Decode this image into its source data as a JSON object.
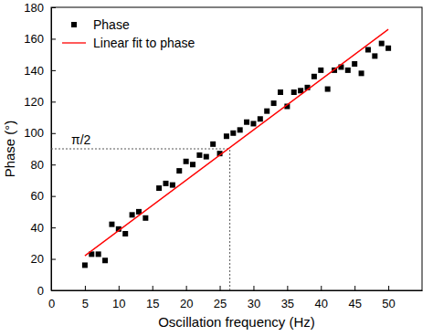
{
  "chart_data": {
    "type": "scatter",
    "x_label": "Oscillation frequency (Hz)",
    "y_label": "Phase (°)",
    "xlim": [
      0,
      55
    ],
    "xticks": [
      0,
      5,
      10,
      15,
      20,
      25,
      30,
      35,
      40,
      45,
      50
    ],
    "ylim": [
      0,
      180
    ],
    "yticks": [
      0,
      20,
      40,
      60,
      80,
      100,
      120,
      140,
      160,
      180
    ],
    "legend": "upper left",
    "grid": false,
    "series": [
      {
        "name": "Phase",
        "type": "scatter",
        "marker": "square",
        "color": "#000000",
        "x": [
          5,
          6,
          7,
          8,
          9,
          10,
          11,
          12,
          13,
          14,
          16,
          17,
          18,
          19,
          20,
          21,
          22,
          23,
          24,
          25,
          26,
          27,
          28,
          29,
          30,
          31,
          32,
          33,
          34,
          35,
          36,
          37,
          38,
          39,
          40,
          41,
          42,
          43,
          44,
          45,
          46,
          47,
          48,
          49,
          50
        ],
        "values": [
          16,
          23,
          23,
          19,
          42,
          39,
          36,
          48,
          50,
          46,
          65,
          68,
          67,
          76,
          82,
          80,
          86,
          85,
          93,
          87,
          98,
          100,
          102,
          107,
          106,
          109,
          114,
          119,
          126,
          117,
          126,
          127,
          129,
          136,
          140,
          128,
          140,
          142,
          140,
          144,
          138,
          153,
          149,
          157,
          154
        ]
      },
      {
        "name": "Linear fit to phase",
        "type": "line",
        "line_style": "solid",
        "color": "#ff0000",
        "x": [
          5,
          50
        ],
        "values": [
          22,
          166
        ]
      }
    ],
    "annotations": [
      {
        "text": "π/2",
        "x": 26.5,
        "y": 90
      }
    ]
  }
}
